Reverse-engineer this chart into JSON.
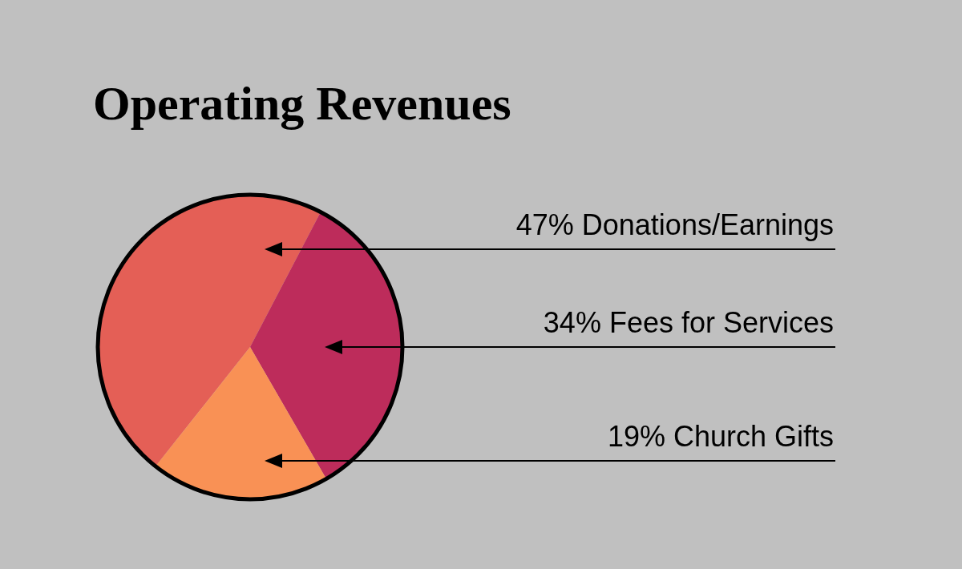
{
  "chart_data": {
    "type": "pie",
    "title": "Operating Revenues",
    "categories": [
      "Donations/Earnings",
      "Fees for Services",
      "Church Gifts"
    ],
    "values": [
      47,
      34,
      19
    ],
    "value_labels": [
      "47%",
      "34%",
      "19%"
    ],
    "colors": [
      "#e45f56",
      "#bd2c5b",
      "#f99155"
    ]
  }
}
